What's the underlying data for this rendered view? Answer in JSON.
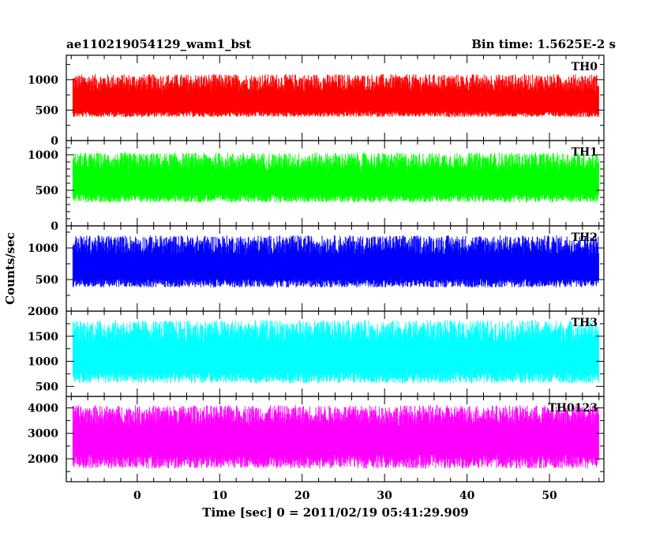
{
  "header": {
    "title": "ae110219054129_wam1_bst",
    "bin_time": "Bin time: 1.5625E-2 s"
  },
  "chart_data": {
    "type": "line",
    "title": "ae110219054129_wam1_bst",
    "xlabel": "Time [sec] 0 = 2011/02/19 05:41:29.909",
    "ylabel": "Counts/sec",
    "xlim": [
      -8.6,
      56.6
    ],
    "x_ticks": [
      0,
      10,
      20,
      30,
      40,
      50
    ],
    "bin_time_s": 0.015625,
    "data_x_range": [
      -7.8,
      56.0
    ],
    "panels": [
      {
        "name": "TH0",
        "color": "#ff0000",
        "ylim": [
          0,
          1400
        ],
        "y_ticks": [
          0,
          500,
          1000
        ],
        "baseline": 570,
        "noise_low": 160,
        "noise_high": 520,
        "min": 30,
        "max": 1400
      },
      {
        "name": "TH1",
        "color": "#00ff00",
        "ylim": [
          0,
          1200
        ],
        "y_ticks": [
          0,
          500,
          1000
        ],
        "baseline": 560,
        "noise_low": 200,
        "noise_high": 470,
        "min": 40,
        "max": 1200
      },
      {
        "name": "TH2",
        "color": "#0000ff",
        "ylim": [
          0,
          1350
        ],
        "y_ticks": [
          500,
          1000
        ],
        "baseline": 640,
        "noise_low": 230,
        "noise_high": 560,
        "min": 80,
        "max": 1350
      },
      {
        "name": "TH3",
        "color": "#00ffff",
        "ylim": [
          300,
          2000
        ],
        "y_ticks": [
          500,
          1000,
          1500,
          2000
        ],
        "baseline": 1000,
        "noise_low": 380,
        "noise_high": 820,
        "min": 360,
        "max": 2000
      },
      {
        "name": "TH0123",
        "color": "#ff00ff",
        "ylim": [
          1100,
          4450
        ],
        "y_ticks": [
          2000,
          3000,
          4000
        ],
        "baseline": 2650,
        "noise_low": 900,
        "noise_high": 1450,
        "min": 1200,
        "max": 4450
      }
    ]
  }
}
